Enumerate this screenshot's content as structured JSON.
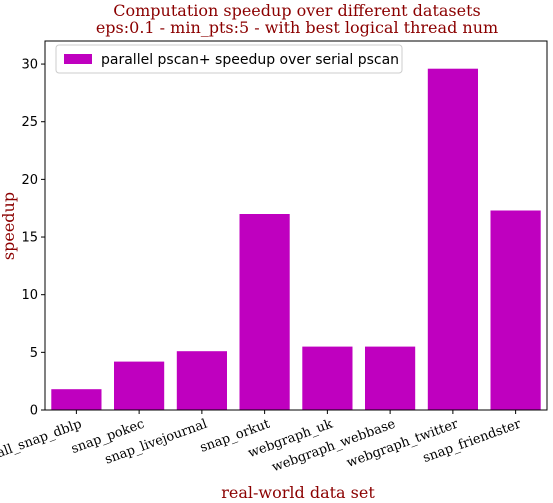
{
  "chart_data": {
    "type": "bar",
    "title_line1": "Computation speedup over different datasets",
    "title_line2": "eps:0.1 - min_pts:5 - with best logical thread num",
    "xlabel": "real-world data set",
    "ylabel": "speedup",
    "categories": [
      "small_snap_dblp",
      "snap_pokec",
      "snap_livejournal",
      "snap_orkut",
      "webgraph_uk",
      "webgraph_webbase",
      "webgraph_twitter",
      "snap_friendster"
    ],
    "series": [
      {
        "name": "parallel pscan+ speedup over serial pscan",
        "values": [
          1.8,
          4.2,
          5.1,
          17.0,
          5.5,
          5.5,
          29.6,
          17.3
        ]
      }
    ],
    "ylim": [
      0,
      32
    ],
    "yticks": [
      "0",
      "5",
      "10",
      "15",
      "20",
      "25",
      "30"
    ],
    "grid": false,
    "legend_position": "top-left",
    "colors": {
      "bar": "#bf00bf",
      "title": "#8b0000",
      "axis": "#000000"
    }
  }
}
